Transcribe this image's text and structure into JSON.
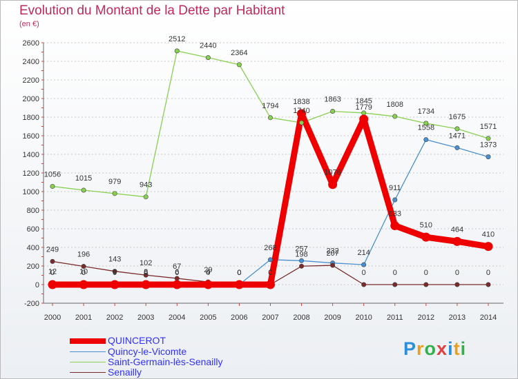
{
  "title": "Evolution du Montant de la Dette par Habitant",
  "unit_label": "(en €)",
  "logo": {
    "text": "Proxiti",
    "colors": [
      "#2a8fd8",
      "#e8a020",
      "#36b04a",
      "#e04040",
      "#2a8fd8",
      "#e8a020",
      "#36b04a"
    ]
  },
  "chart_data": {
    "type": "line",
    "title": "Evolution du Montant de la Dette par Habitant",
    "ylabel": "(en €)",
    "xlabel": "",
    "x": [
      "2000",
      "2001",
      "2002",
      "2003",
      "2004",
      "2005",
      "2006",
      "2007",
      "2008",
      "2009",
      "2010",
      "2011",
      "2012",
      "2013",
      "2014"
    ],
    "ylim": [
      -200,
      2600
    ],
    "yticks": [
      -200,
      0,
      200,
      400,
      600,
      800,
      1000,
      1200,
      1400,
      1600,
      1800,
      2000,
      2200,
      2400,
      2600
    ],
    "grid": "horizontal dashed",
    "legend_position": "bottom-left",
    "series": [
      {
        "name": "QUINCEROT",
        "color": "#ee0000",
        "values": [
          0,
          0,
          0,
          0,
          0,
          0,
          0,
          0,
          1838,
          1076,
          1779,
          633,
          510,
          464,
          410
        ],
        "labels": [
          "0",
          "0",
          "0",
          "0",
          "0",
          "0",
          "0",
          "0",
          "1838",
          "1076",
          "1779",
          "633",
          "510",
          "464",
          "410"
        ]
      },
      {
        "name": "Quincy-le-Vicomte",
        "color": "#4a90d0",
        "values": [
          12,
          10,
          9,
          8,
          6,
          4,
          0,
          268,
          257,
          232,
          214,
          911,
          1558,
          1471,
          1373
        ],
        "labels": [
          "12",
          "10",
          "9",
          "8",
          "6",
          "4",
          "0",
          "268",
          "257",
          "232",
          "214",
          "911",
          "1558",
          "1471",
          "1373"
        ]
      },
      {
        "name": "Saint-Germain-lès-Senailly",
        "color": "#88d050",
        "values": [
          1056,
          1015,
          979,
          943,
          2512,
          2440,
          2364,
          1794,
          1740,
          1863,
          1845,
          1808,
          1734,
          1675,
          1571
        ],
        "labels": [
          "1056",
          "1015",
          "979",
          "943",
          "2512",
          "2440",
          "2364",
          "1794",
          "1740",
          "1863",
          "1845",
          "1808",
          "1734",
          "1675",
          "1571"
        ]
      },
      {
        "name": "Senailly",
        "color": "#7a2a2a",
        "values": [
          249,
          196,
          143,
          102,
          67,
          29,
          0,
          0,
          198,
          207,
          0,
          0,
          0,
          0,
          0
        ],
        "labels": [
          "249",
          "196",
          "143",
          "102",
          "67",
          "29",
          "0",
          "0",
          "198",
          "207",
          "0",
          "0",
          "0",
          "0",
          "0"
        ]
      }
    ]
  }
}
